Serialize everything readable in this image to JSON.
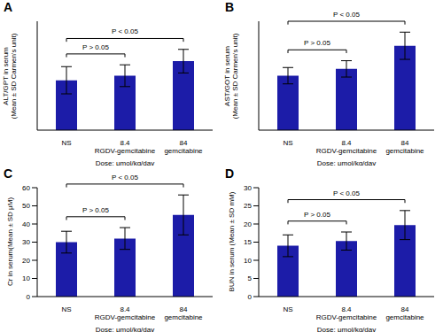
{
  "chart_data": [
    {
      "type": "bar",
      "panel": "A",
      "y_label": "ALT/GPT in serum\n(Mean ± SD Carmen's unit)",
      "x_label": "Dose: μmol/kg/day",
      "categories": [
        "NS",
        "8.4\nRGDV-gemcitabine",
        "84\ngemcitabine"
      ],
      "values": [
        55,
        60,
        76
      ],
      "errors": [
        15,
        12,
        13
      ],
      "color": "#1c1ca8",
      "ylim": [
        0,
        120
      ],
      "tick_labels": "x",
      "annotations": [
        {
          "from": 0,
          "to": 1,
          "label": "P > 0.05"
        },
        {
          "from": 0,
          "to": 2,
          "label": "P < 0.05"
        }
      ]
    },
    {
      "type": "bar",
      "panel": "B",
      "y_label": "AST/GOT in serum\n(Mean ± SD Carmen's unit)",
      "x_label": "Dose: μmol/kg/day",
      "categories": [
        "NS",
        "8.4\nRGDV-gemcitabine",
        "84\ngemcitabine"
      ],
      "values": [
        40,
        45,
        62
      ],
      "errors": [
        6,
        6,
        10
      ],
      "color": "#1c1ca8",
      "ylim": [
        0,
        80
      ],
      "tick_labels": "x",
      "annotations": [
        {
          "from": 0,
          "to": 1,
          "label": "P > 0.05"
        },
        {
          "from": 0,
          "to": 2,
          "label": "P < 0.05"
        }
      ]
    },
    {
      "type": "bar",
      "panel": "C",
      "y_label": "Cr in serum(Mean ± SD μM)",
      "x_label": "Dose: μmol/kg/day",
      "categories": [
        "NS",
        "8.4\nRGDV-gemcitabine",
        "84\ngemcitabine"
      ],
      "values": [
        30,
        32,
        45
      ],
      "errors": [
        6,
        6,
        11
      ],
      "color": "#1c1ca8",
      "ylim": [
        0,
        60
      ],
      "yticks": [
        0,
        10,
        20,
        30,
        40,
        50,
        60
      ],
      "annotations": [
        {
          "from": 0,
          "to": 1,
          "label": "P > 0.05"
        },
        {
          "from": 0,
          "to": 2,
          "label": "P < 0.05"
        }
      ]
    },
    {
      "type": "bar",
      "panel": "D",
      "y_label": "BUN in serum (Mean ± SD mM)",
      "x_label": "Dose: μmol/kg/day",
      "categories": [
        "NS",
        "8.4\nRGDV-gemcitabine",
        "84\ngemcitabine"
      ],
      "values": [
        14,
        15.3,
        19.7
      ],
      "errors": [
        3,
        2.5,
        4
      ],
      "color": "#1c1ca8",
      "ylim": [
        0,
        30
      ],
      "yticks": [
        0,
        5,
        10,
        15,
        20,
        25,
        30
      ],
      "annotations": [
        {
          "from": 0,
          "to": 1,
          "label": "P > 0.05"
        },
        {
          "from": 0,
          "to": 2,
          "label": "P < 0.05"
        }
      ]
    }
  ]
}
